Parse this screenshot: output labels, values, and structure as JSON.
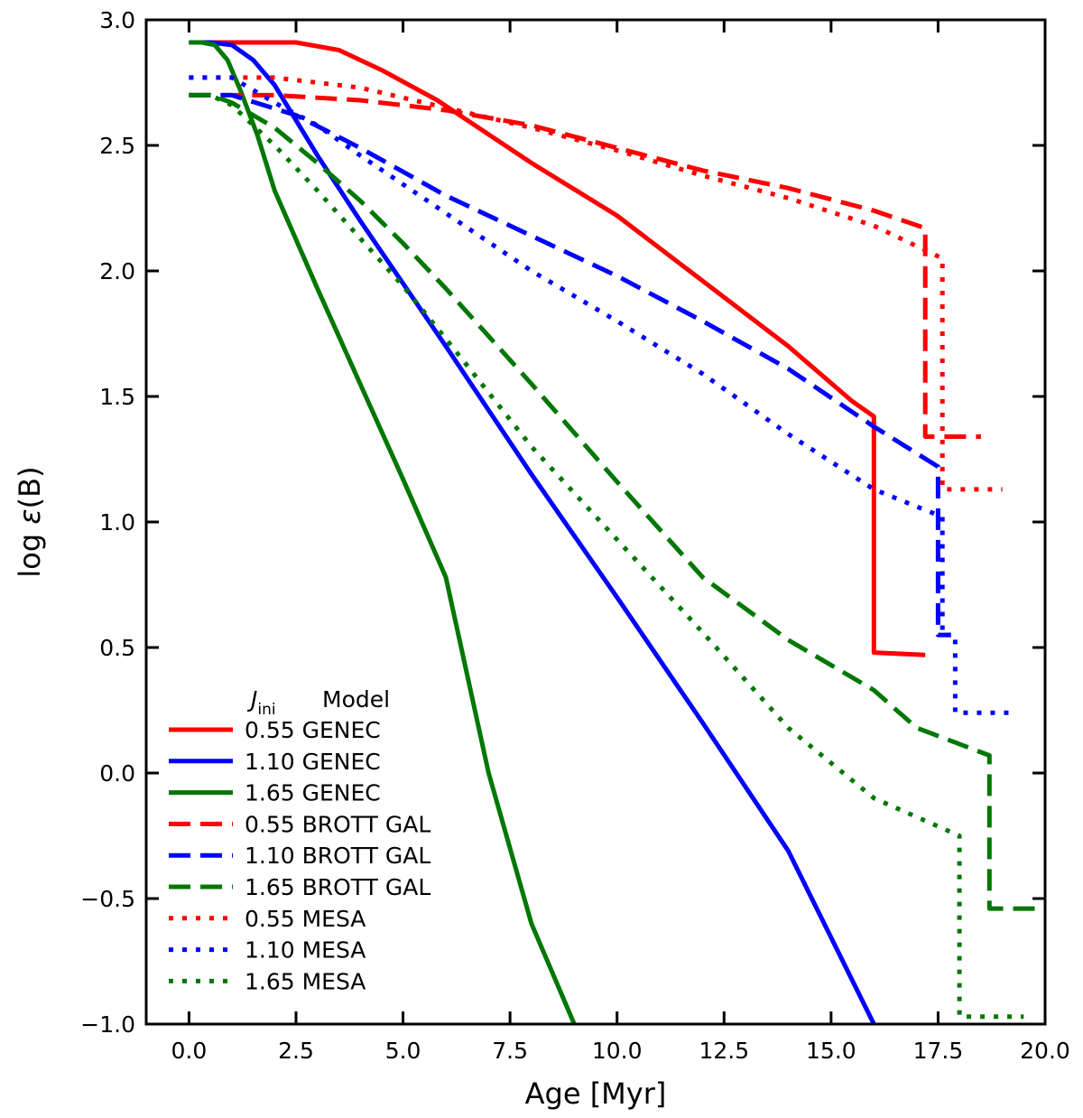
{
  "chart_data": {
    "type": "line",
    "xlabel": "Age [Myr]",
    "ylabel_prefix": "log ",
    "ylabel_symbol": "ε",
    "ylabel_suffix": "(B)",
    "xlim": [
      -1.0,
      20.0
    ],
    "ylim": [
      -1.0,
      3.0
    ],
    "xticks": [
      0.0,
      2.5,
      5.0,
      7.5,
      10.0,
      12.5,
      15.0,
      17.5,
      20.0
    ],
    "xtick_labels": [
      "0.0",
      "2.5",
      "5.0",
      "7.5",
      "10.0",
      "12.5",
      "15.0",
      "17.5",
      "20.0"
    ],
    "yticks": [
      -1.0,
      -0.5,
      0.0,
      0.5,
      1.0,
      1.5,
      2.0,
      2.5,
      3.0
    ],
    "ytick_labels": [
      "−1.0",
      "−0.5",
      "0.0",
      "0.5",
      "1.0",
      "1.5",
      "2.0",
      "2.5",
      "3.0"
    ],
    "legend": {
      "header_j": "J",
      "header_j_sub": "ini",
      "header_model": "Model",
      "placement": "lower-left"
    },
    "series": [
      {
        "name": "0.55 GENEC",
        "color": "#ff0000",
        "style": "solid",
        "x": [
          0.0,
          0.5,
          1.0,
          2.5,
          3.5,
          4.5,
          5.8,
          8.0,
          10.0,
          12.0,
          14.0,
          15.5,
          16.0,
          16.0,
          17.2
        ],
        "y": [
          2.91,
          2.91,
          2.91,
          2.91,
          2.88,
          2.8,
          2.68,
          2.43,
          2.22,
          1.96,
          1.7,
          1.48,
          1.42,
          0.48,
          0.47
        ]
      },
      {
        "name": "1.10 GENEC",
        "color": "#0000ff",
        "style": "solid",
        "x": [
          0.0,
          0.5,
          1.0,
          1.5,
          2.0,
          2.5,
          3.0,
          4.0,
          5.0,
          6.0,
          8.0,
          10.0,
          12.0,
          14.0,
          16.0
        ],
        "y": [
          2.91,
          2.91,
          2.9,
          2.84,
          2.74,
          2.6,
          2.46,
          2.2,
          1.95,
          1.7,
          1.19,
          0.7,
          0.2,
          -0.31,
          -1.0
        ]
      },
      {
        "name": "1.65 GENEC",
        "color": "#007700",
        "style": "solid",
        "x": [
          0.0,
          0.3,
          0.6,
          0.9,
          1.2,
          1.6,
          2.0,
          3.0,
          4.0,
          5.0,
          6.0,
          7.0,
          8.0,
          9.0
        ],
        "y": [
          2.91,
          2.91,
          2.9,
          2.84,
          2.72,
          2.54,
          2.32,
          1.93,
          1.55,
          1.17,
          0.78,
          0.0,
          -0.6,
          -1.0
        ]
      },
      {
        "name": "0.55 BROTT GAL",
        "color": "#ff0000",
        "style": "dashed",
        "x": [
          0.0,
          2.0,
          4.0,
          6.0,
          8.0,
          10.0,
          12.0,
          14.0,
          16.0,
          17.2,
          17.2,
          18.5
        ],
        "y": [
          2.7,
          2.7,
          2.68,
          2.64,
          2.58,
          2.49,
          2.4,
          2.33,
          2.24,
          2.17,
          1.34,
          1.34
        ]
      },
      {
        "name": "1.10 BROTT GAL",
        "color": "#0000ff",
        "style": "dashed",
        "x": [
          0.0,
          1.0,
          2.5,
          4.0,
          6.0,
          8.0,
          10.0,
          12.0,
          14.0,
          16.0,
          17.5,
          17.5,
          17.8
        ],
        "y": [
          2.7,
          2.7,
          2.62,
          2.49,
          2.3,
          2.14,
          1.98,
          1.8,
          1.61,
          1.38,
          1.22,
          0.55,
          0.55
        ]
      },
      {
        "name": "1.65 BROTT GAL",
        "color": "#007700",
        "style": "dashed",
        "x": [
          0.0,
          0.5,
          1.0,
          2.0,
          3.0,
          4.0,
          5.0,
          6.0,
          8.0,
          10.0,
          12.0,
          14.0,
          16.0,
          17.0,
          18.7,
          18.7,
          20.0
        ],
        "y": [
          2.7,
          2.7,
          2.67,
          2.57,
          2.43,
          2.28,
          2.11,
          1.93,
          1.55,
          1.16,
          0.78,
          0.53,
          0.33,
          0.18,
          0.07,
          -0.54,
          -0.54
        ]
      },
      {
        "name": "0.55 MESA",
        "color": "#ff0000",
        "style": "dotted",
        "x": [
          0.0,
          2.0,
          4.0,
          6.0,
          8.0,
          10.0,
          12.0,
          14.0,
          16.0,
          17.6,
          17.6,
          19.0
        ],
        "y": [
          2.77,
          2.77,
          2.73,
          2.65,
          2.57,
          2.48,
          2.38,
          2.29,
          2.18,
          2.05,
          1.13,
          1.13
        ]
      },
      {
        "name": "1.10 MESA",
        "color": "#0000ff",
        "style": "dotted",
        "x": [
          0.0,
          1.0,
          2.0,
          3.0,
          4.0,
          6.0,
          8.0,
          10.0,
          12.0,
          14.0,
          16.0,
          17.6,
          17.6,
          17.9,
          17.9,
          19.3
        ],
        "y": [
          2.77,
          2.77,
          2.67,
          2.58,
          2.46,
          2.23,
          2.0,
          1.8,
          1.59,
          1.35,
          1.13,
          1.02,
          0.55,
          0.55,
          0.24,
          0.24
        ]
      },
      {
        "name": "1.65 MESA",
        "color": "#007700",
        "style": "dotted",
        "x": [
          0.0,
          0.5,
          1.0,
          2.0,
          3.0,
          4.0,
          5.0,
          6.0,
          8.0,
          10.0,
          12.0,
          14.0,
          16.0,
          18.0,
          18.0,
          19.5
        ],
        "y": [
          2.7,
          2.7,
          2.66,
          2.5,
          2.32,
          2.13,
          1.94,
          1.73,
          1.3,
          0.93,
          0.56,
          0.18,
          -0.1,
          -0.25,
          -0.97,
          -0.97
        ]
      }
    ]
  }
}
